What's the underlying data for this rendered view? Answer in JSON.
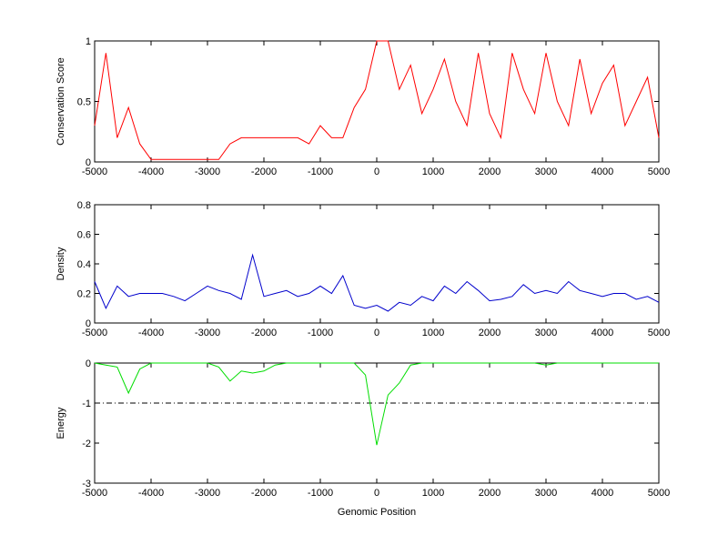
{
  "chart_data": [
    {
      "type": "line",
      "ylabel": "Conservation Score",
      "color": "#ff0000",
      "x": [
        -5000,
        -4800,
        -4600,
        -4400,
        -4200,
        -4000,
        -3800,
        -3600,
        -3400,
        -3200,
        -3000,
        -2800,
        -2600,
        -2400,
        -2200,
        -2000,
        -1800,
        -1600,
        -1400,
        -1200,
        -1000,
        -800,
        -600,
        -400,
        -200,
        0,
        200,
        400,
        600,
        800,
        1000,
        1200,
        1400,
        1600,
        1800,
        2000,
        2200,
        2400,
        2600,
        2800,
        3000,
        3200,
        3400,
        3600,
        3800,
        4000,
        4200,
        4400,
        4600,
        4800,
        5000
      ],
      "values": [
        0.3,
        0.9,
        0.2,
        0.45,
        0.15,
        0.02,
        0.02,
        0.02,
        0.02,
        0.02,
        0.02,
        0.02,
        0.15,
        0.2,
        0.2,
        0.2,
        0.2,
        0.2,
        0.2,
        0.15,
        0.3,
        0.2,
        0.2,
        0.45,
        0.6,
        1,
        1,
        0.6,
        0.8,
        0.4,
        0.6,
        0.85,
        0.5,
        0.3,
        0.9,
        0.4,
        0.2,
        0.9,
        0.6,
        0.4,
        0.9,
        0.5,
        0.3,
        0.85,
        0.4,
        0.65,
        0.8,
        0.3,
        0.5,
        0.7,
        0.2
      ],
      "xlim": [
        -5000,
        5000
      ],
      "xticks": [
        -5000,
        -4000,
        -3000,
        -2000,
        -1000,
        0,
        1000,
        2000,
        3000,
        4000,
        5000
      ],
      "ylim": [
        0,
        1
      ],
      "yticks": [
        0,
        0.5,
        1
      ]
    },
    {
      "type": "line",
      "ylabel": "Density",
      "color": "#0000cc",
      "x": [
        -5000,
        -4800,
        -4600,
        -4400,
        -4200,
        -4000,
        -3800,
        -3600,
        -3400,
        -3200,
        -3000,
        -2800,
        -2600,
        -2400,
        -2200,
        -2000,
        -1800,
        -1600,
        -1400,
        -1200,
        -1000,
        -800,
        -600,
        -400,
        -200,
        0,
        200,
        400,
        600,
        800,
        1000,
        1200,
        1400,
        1600,
        1800,
        2000,
        2200,
        2400,
        2600,
        2800,
        3000,
        3200,
        3400,
        3600,
        3800,
        4000,
        4200,
        4400,
        4600,
        4800,
        5000
      ],
      "values": [
        0.28,
        0.1,
        0.25,
        0.18,
        0.2,
        0.2,
        0.2,
        0.18,
        0.15,
        0.2,
        0.25,
        0.22,
        0.2,
        0.16,
        0.46,
        0.18,
        0.2,
        0.22,
        0.18,
        0.2,
        0.25,
        0.2,
        0.32,
        0.12,
        0.1,
        0.12,
        0.08,
        0.14,
        0.12,
        0.18,
        0.15,
        0.25,
        0.2,
        0.28,
        0.22,
        0.15,
        0.16,
        0.18,
        0.26,
        0.2,
        0.22,
        0.2,
        0.28,
        0.22,
        0.2,
        0.18,
        0.2,
        0.2,
        0.16,
        0.18,
        0.14
      ],
      "xlim": [
        -5000,
        5000
      ],
      "xticks": [
        -5000,
        -4000,
        -3000,
        -2000,
        -1000,
        0,
        1000,
        2000,
        3000,
        4000,
        5000
      ],
      "ylim": [
        0,
        0.8
      ],
      "yticks": [
        0,
        0.2,
        0.4,
        0.6,
        0.8
      ]
    },
    {
      "type": "line",
      "ylabel": "Energy",
      "xlabel": "Genomic Position",
      "color": "#00dd00",
      "x": [
        -5000,
        -4800,
        -4600,
        -4400,
        -4200,
        -4000,
        -3800,
        -3600,
        -3400,
        -3200,
        -3000,
        -2800,
        -2600,
        -2400,
        -2200,
        -2000,
        -1800,
        -1600,
        -1400,
        -1200,
        -1000,
        -800,
        -600,
        -400,
        -200,
        0,
        200,
        400,
        600,
        800,
        1000,
        1200,
        1400,
        1600,
        1800,
        2000,
        2200,
        2400,
        2600,
        2800,
        3000,
        3200,
        3400,
        3600,
        3800,
        4000,
        4200,
        4400,
        4600,
        4800,
        5000
      ],
      "values": [
        0,
        -0.05,
        -0.1,
        -0.75,
        -0.15,
        0,
        0,
        0,
        0,
        0,
        0,
        -0.1,
        -0.45,
        -0.2,
        -0.25,
        -0.2,
        -0.05,
        0,
        0,
        0,
        0,
        0,
        0,
        0,
        -0.3,
        -2.05,
        -0.8,
        -0.5,
        -0.05,
        0,
        0,
        0,
        0,
        0,
        0,
        0,
        0,
        0,
        0,
        0,
        -0.05,
        0,
        0,
        0,
        0,
        0,
        0,
        0,
        0,
        0,
        0
      ],
      "hline": -1,
      "xlim": [
        -5000,
        5000
      ],
      "xticks": [
        -5000,
        -4000,
        -3000,
        -2000,
        -1000,
        0,
        1000,
        2000,
        3000,
        4000,
        5000
      ],
      "ylim": [
        -3,
        0
      ],
      "yticks": [
        -3,
        -2,
        -1,
        0
      ]
    }
  ]
}
